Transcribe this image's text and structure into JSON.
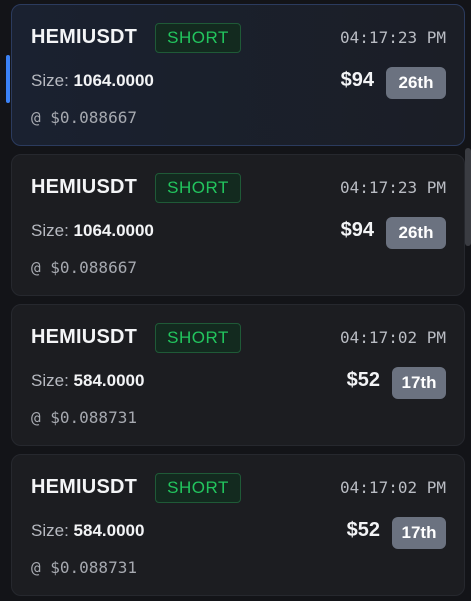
{
  "trades": [
    {
      "symbol": "HEMIUSDT",
      "side": "SHORT",
      "time": "04:17:23 PM",
      "size_label": "Size:",
      "size_value": "1064.0000",
      "amount": "$94",
      "rank": "26th",
      "price": "@ $0.088667",
      "selected": true
    },
    {
      "symbol": "HEMIUSDT",
      "side": "SHORT",
      "time": "04:17:23 PM",
      "size_label": "Size:",
      "size_value": "1064.0000",
      "amount": "$94",
      "rank": "26th",
      "price": "@ $0.088667",
      "selected": false
    },
    {
      "symbol": "HEMIUSDT",
      "side": "SHORT",
      "time": "04:17:02 PM",
      "size_label": "Size:",
      "size_value": "584.0000",
      "amount": "$52",
      "rank": "17th",
      "price": "@ $0.088731",
      "selected": false
    },
    {
      "symbol": "HEMIUSDT",
      "side": "SHORT",
      "time": "04:17:02 PM",
      "size_label": "Size:",
      "size_value": "584.0000",
      "amount": "$52",
      "rank": "17th",
      "price": "@ $0.088731",
      "selected": false
    }
  ],
  "colors": {
    "short": "#22c55e",
    "selected_accent": "#3b82f6",
    "rank_badge": "#6b7280"
  }
}
